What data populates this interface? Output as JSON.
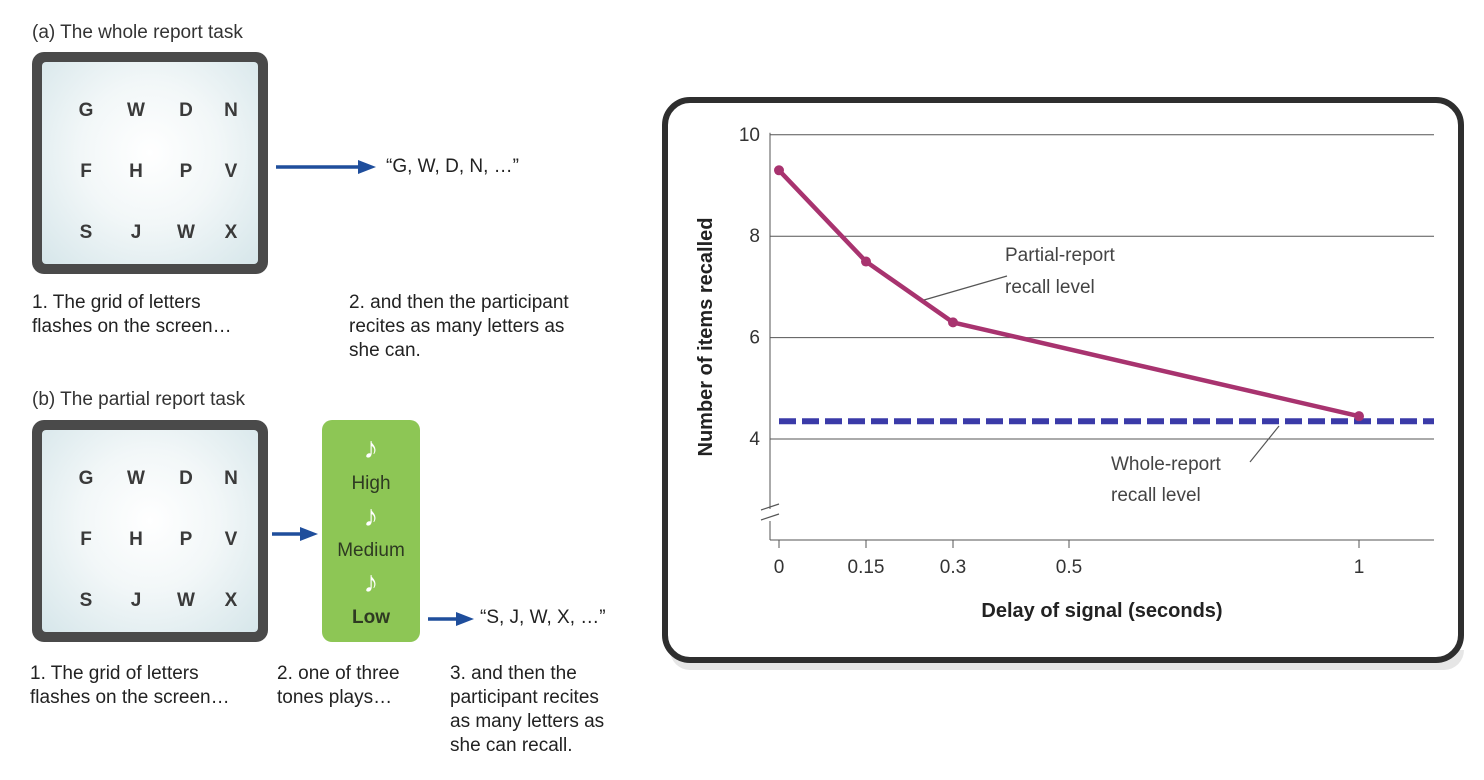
{
  "panel_a": {
    "title": "(a) The whole report task",
    "grid": [
      [
        "G",
        "W",
        "D",
        "N"
      ],
      [
        "F",
        "H",
        "P",
        "V"
      ],
      [
        "S",
        "J",
        "W",
        "X"
      ]
    ],
    "response": "“G, W, D, N, …”",
    "caption_1": [
      "1. The grid of letters",
      "flashes on the screen…"
    ],
    "caption_2": [
      "2. and then the participant",
      "recites as many letters as",
      "she can."
    ]
  },
  "panel_b": {
    "title": "(b) The partial report task",
    "grid": [
      [
        "G",
        "W",
        "D",
        "N"
      ],
      [
        "F",
        "H",
        "P",
        "V"
      ],
      [
        "S",
        "J",
        "W",
        "X"
      ]
    ],
    "tones": [
      "High",
      "Medium",
      "Low"
    ],
    "note_glyph": "♪",
    "response": "“S, J, W, X, …”",
    "caption_1": [
      "1. The grid of letters",
      "flashes on the screen…"
    ],
    "caption_2": [
      "2. one of three",
      "tones plays…"
    ],
    "caption_3": [
      "3. and then the",
      "participant recites",
      "as many letters as",
      "she can recall."
    ]
  },
  "colors": {
    "arrow": "#1f4e9c",
    "tone_box": "#8dc655",
    "partial_line": "#a8336f",
    "whole_line": "#3a3aa8"
  },
  "chart_data": {
    "type": "line",
    "title": "",
    "xlabel": "Delay of signal (seconds)",
    "ylabel": "Number of items recalled",
    "xlim": [
      0,
      1.14
    ],
    "ylim": [
      2.5,
      10
    ],
    "x_ticks": [
      0,
      0.15,
      0.3,
      0.5,
      1
    ],
    "x_tick_labels": [
      "0",
      "0.15",
      "0.3",
      "0.5",
      "1"
    ],
    "y_ticks": [
      4,
      6,
      8,
      10
    ],
    "y_tick_labels": [
      "4",
      "6",
      "8",
      "10"
    ],
    "y_axis_break": true,
    "grid": "horizontal",
    "series": [
      {
        "name": "Partial-report recall level",
        "label_lines": [
          "Partial-report",
          "recall level"
        ],
        "style": "solid",
        "x": [
          0,
          0.15,
          0.3,
          1
        ],
        "y": [
          9.3,
          7.5,
          6.3,
          4.45
        ]
      },
      {
        "name": "Whole-report recall level",
        "label_lines": [
          "Whole-report",
          "recall level"
        ],
        "style": "dashed",
        "x": [
          0,
          1.14
        ],
        "y": [
          4.35,
          4.35
        ]
      }
    ]
  }
}
